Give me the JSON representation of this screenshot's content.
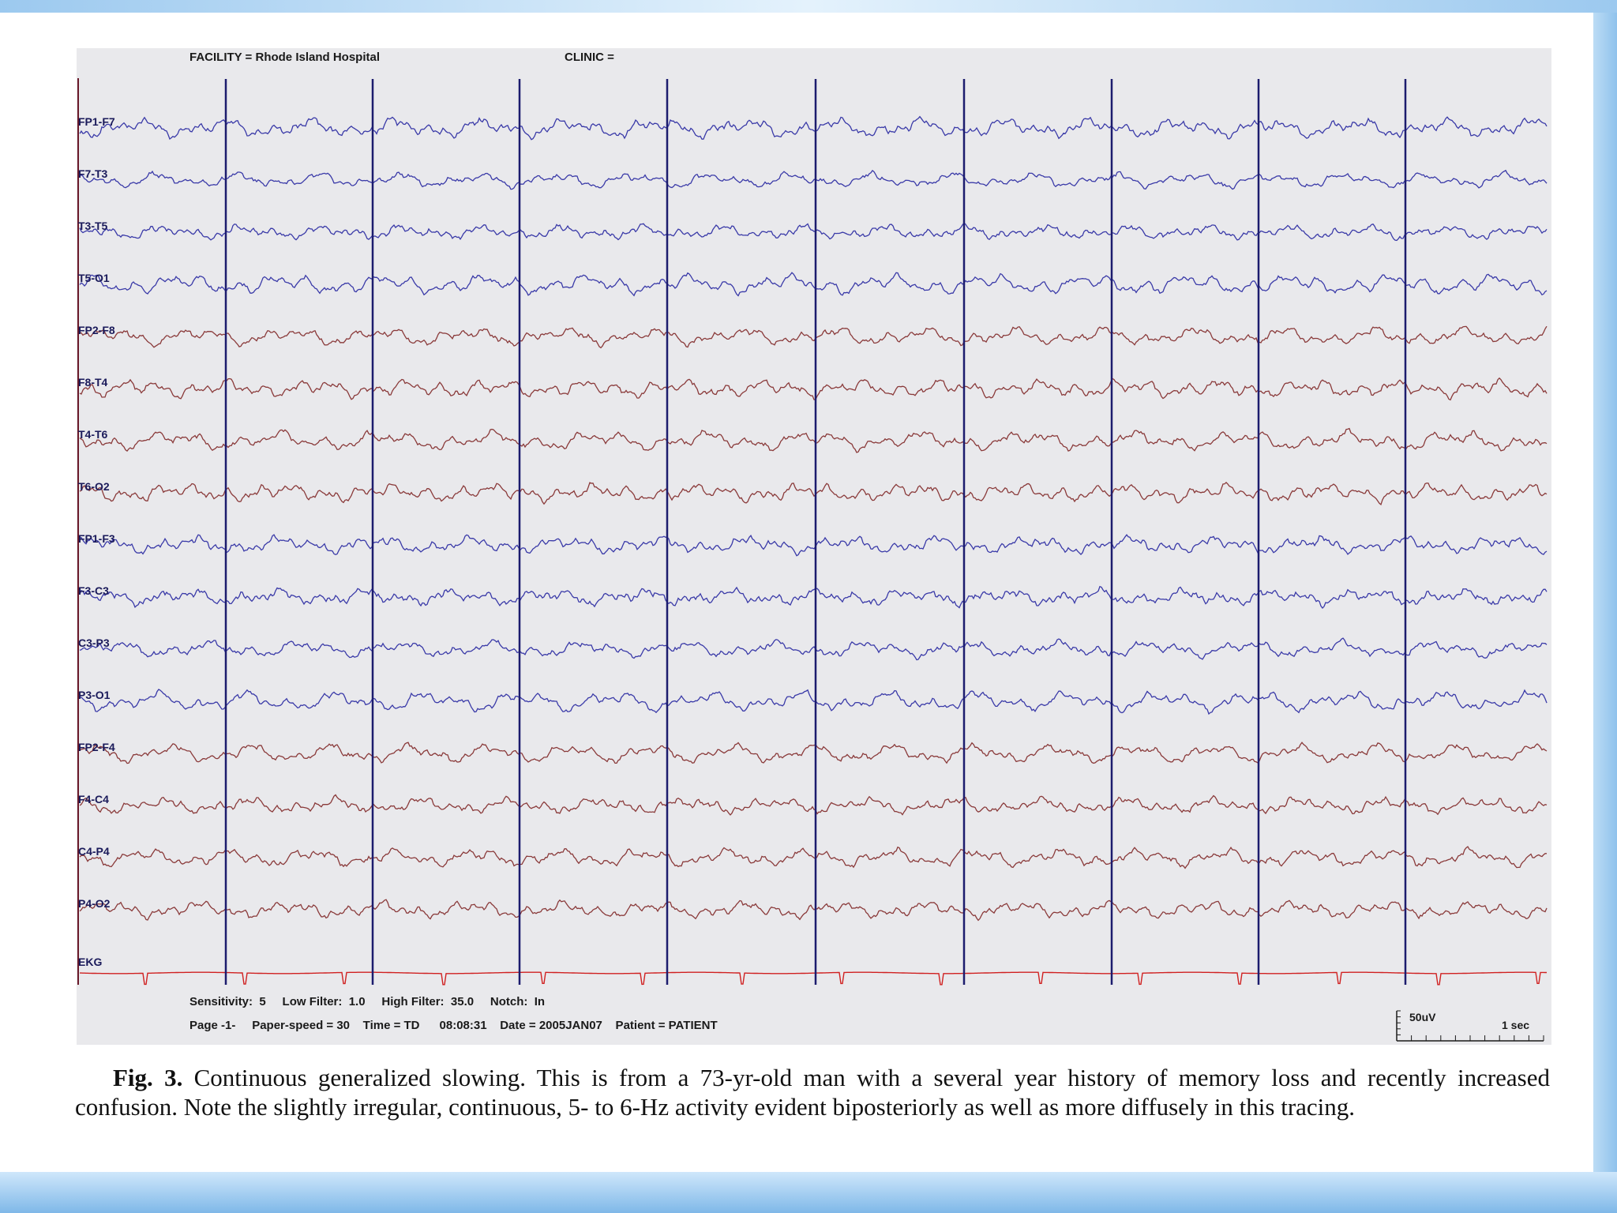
{
  "header": {
    "facility": "FACILITY = Rhode Island Hospital",
    "clinic": "CLINIC ="
  },
  "channels": [
    {
      "label": "FP1-F7",
      "color": "#3a3aa8"
    },
    {
      "label": "F7-T3",
      "color": "#3a3aa8"
    },
    {
      "label": "T3-T5",
      "color": "#3a3aa8"
    },
    {
      "label": "T5-O1",
      "color": "#3a3aa8"
    },
    {
      "label": "FP2-F8",
      "color": "#8a3a3a"
    },
    {
      "label": "F8-T4",
      "color": "#8a3a3a"
    },
    {
      "label": "T4-T6",
      "color": "#8a3a3a"
    },
    {
      "label": "T6-O2",
      "color": "#8a3a3a"
    },
    {
      "label": "FP1-F3",
      "color": "#3a3aa8"
    },
    {
      "label": "F3-C3",
      "color": "#3a3aa8"
    },
    {
      "label": "C3-P3",
      "color": "#3a3aa8"
    },
    {
      "label": "P3-O1",
      "color": "#3a3aa8"
    },
    {
      "label": "FP2-F4",
      "color": "#8a3a3a"
    },
    {
      "label": "F4-C4",
      "color": "#8a3a3a"
    },
    {
      "label": "C4-P4",
      "color": "#8a3a3a"
    },
    {
      "label": "P4-O2",
      "color": "#8a3a3a"
    },
    {
      "label": "EKG",
      "color": "#d02020"
    }
  ],
  "footer": {
    "line1": "Sensitivity:  5     Low Filter:  1.0     High Filter:  35.0     Notch:  In",
    "line2": "Page -1-     Paper-speed = 30    Time = TD      08:08:31    Date = 2005JAN07    Patient = PATIENT",
    "amplitude_scale": "50uV",
    "time_scale": "1 sec"
  },
  "caption": {
    "lead": "Fig. 3.",
    "text": " Continuous generalized slowing. This is from a 73-yr-old man with a several year history of memory loss and recently increased confusion. Note the slightly irregular, continuous, 5- to 6-Hz activity evident biposteriorly as well as more diffusely in this tracing."
  },
  "colors": {
    "second_marker": "#1c1c6e",
    "panel_background": "#e9e9ec"
  }
}
